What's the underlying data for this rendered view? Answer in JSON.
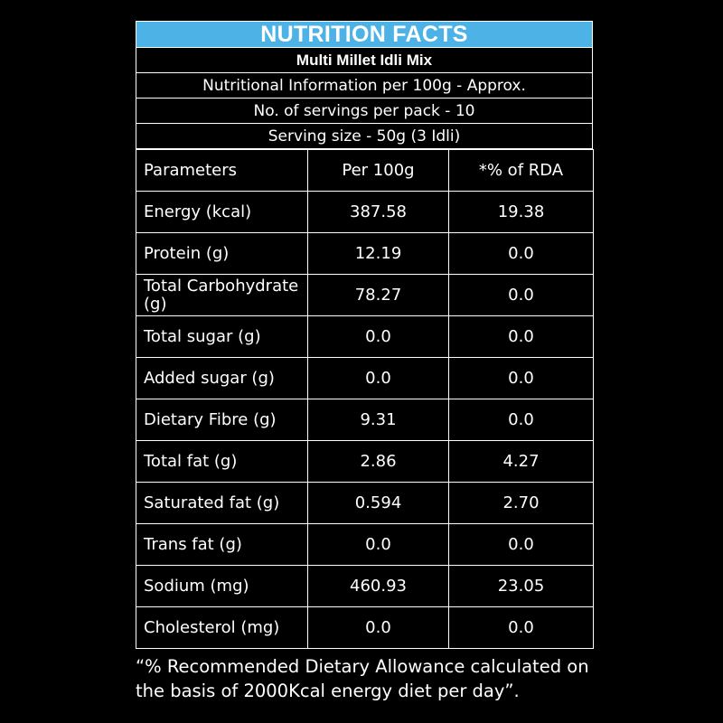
{
  "panel": {
    "title": "NUTRITION FACTS",
    "title_bg": "#4db3e6",
    "product": "Multi Millet Idli Mix",
    "nutritional_info": "Nutritional Information per 100g - Approx.",
    "servings": "No. of servings per pack - 10",
    "serving_size": "Serving size - 50g (3 Idli)"
  },
  "table": {
    "headers": [
      "Parameters",
      "Per 100g",
      "*% of RDA"
    ],
    "rows": [
      [
        "Energy (kcal)",
        "387.58",
        "19.38"
      ],
      [
        "Protein (g)",
        "12.19",
        "0.0"
      ],
      [
        "Total Carbohydrate (g)",
        "78.27",
        "0.0"
      ],
      [
        "Total sugar (g)",
        "0.0",
        "0.0"
      ],
      [
        "Added sugar (g)",
        "0.0",
        "0.0"
      ],
      [
        "Dietary Fibre (g)",
        "9.31",
        "0.0"
      ],
      [
        "Total fat (g)",
        "2.86",
        "4.27"
      ],
      [
        "Saturated fat (g)",
        "0.594",
        "2.70"
      ],
      [
        "Trans fat (g)",
        "0.0",
        "0.0"
      ],
      [
        "Sodium (mg)",
        "460.93",
        "23.05"
      ],
      [
        "Cholesterol (mg)",
        "0.0",
        "0.0"
      ]
    ]
  },
  "footnote": {
    "line1": "“% Recommended Dietary Allowance calculated on",
    "line2": "the basis of 2000Kcal energy diet per day”."
  }
}
